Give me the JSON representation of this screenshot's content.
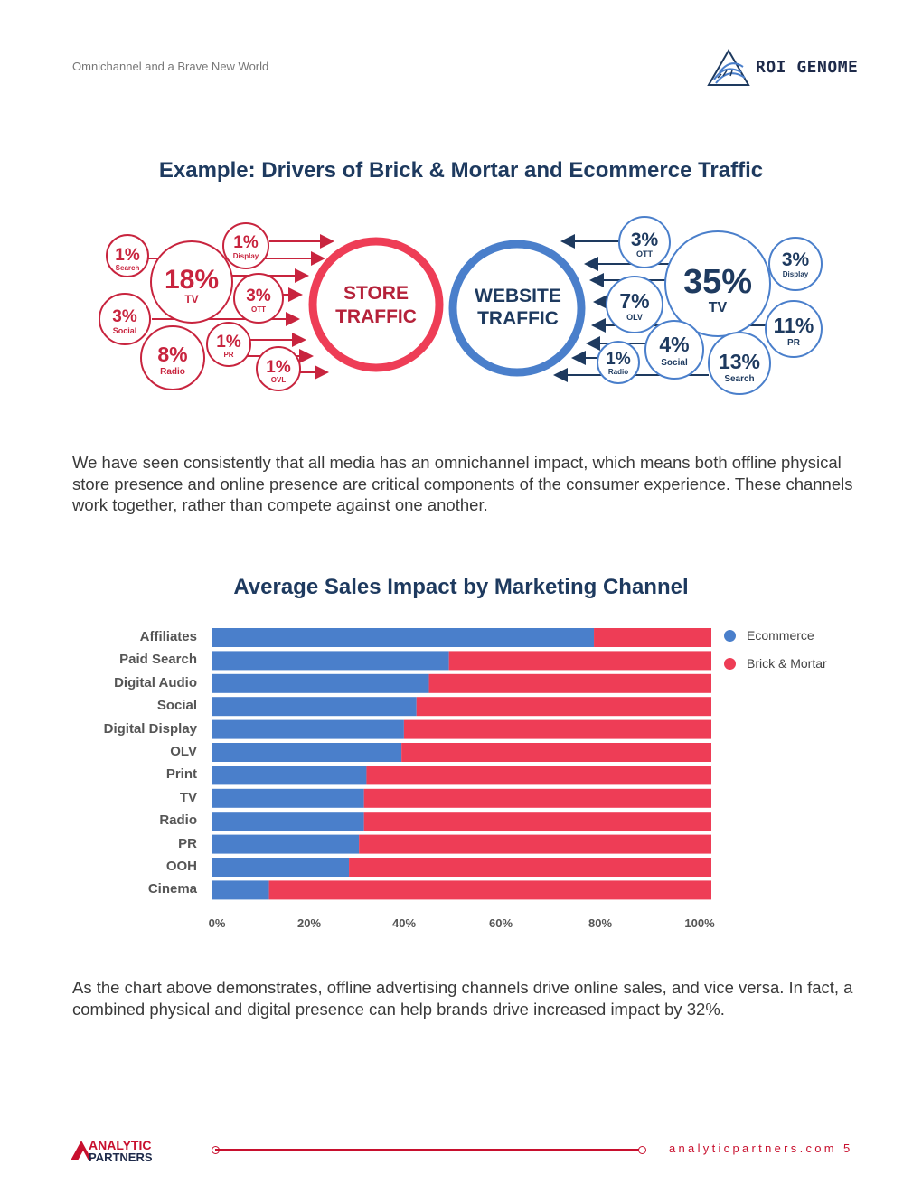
{
  "header": {
    "doc_title": "Omnichannel and a Brave New World",
    "logo_text": "ROI GENOME"
  },
  "section1": {
    "title": "Example: Drivers of Brick & Mortar and Ecommerce Traffic"
  },
  "store_diagram": {
    "center_label_line1": "STORE",
    "center_label_line2": "TRAFFIC",
    "bubbles": [
      {
        "pct": "1%",
        "label": "Search"
      },
      {
        "pct": "18%",
        "label": "TV"
      },
      {
        "pct": "1%",
        "label": "Display"
      },
      {
        "pct": "3%",
        "label": "OTT"
      },
      {
        "pct": "3%",
        "label": "Social"
      },
      {
        "pct": "1%",
        "label": "PR"
      },
      {
        "pct": "8%",
        "label": "Radio"
      },
      {
        "pct": "1%",
        "label": "OVL"
      }
    ]
  },
  "web_diagram": {
    "center_label_line1": "WEBSITE",
    "center_label_line2": "TRAFFIC",
    "bubbles": [
      {
        "pct": "3%",
        "label": "OTT"
      },
      {
        "pct": "35%",
        "label": "TV"
      },
      {
        "pct": "3%",
        "label": "Display"
      },
      {
        "pct": "7%",
        "label": "OLV"
      },
      {
        "pct": "11%",
        "label": "PR"
      },
      {
        "pct": "4%",
        "label": "Social"
      },
      {
        "pct": "1%",
        "label": "Radio"
      },
      {
        "pct": "13%",
        "label": "Search"
      }
    ]
  },
  "paragraph1": "We have seen consistently that all media has an omnichannel impact, which means both offline physical store presence and online presence are critical components of the consumer experience. These channels work together, rather than compete against one another.",
  "chart_data": {
    "type": "bar",
    "orientation": "horizontal",
    "stacked": true,
    "title": "Average Sales Impact by Marketing Channel",
    "categories": [
      "Affiliates",
      "Paid Search",
      "Digital Audio",
      "Social",
      "Digital Display",
      "OLV",
      "Print",
      "TV",
      "Radio",
      "PR",
      "OOH",
      "Cinema"
    ],
    "series": [
      {
        "name": "Ecommerce",
        "color": "#4a7fcb",
        "values": [
          76.5,
          47.5,
          43.5,
          41,
          38.5,
          38,
          31,
          30.5,
          30.5,
          29.5,
          27.5,
          11.5
        ]
      },
      {
        "name": "Brick & Mortar",
        "color": "#ee3d56",
        "values": [
          23.5,
          52.5,
          56.5,
          59,
          61.5,
          62,
          69,
          69.5,
          69.5,
          70.5,
          72.5,
          88.5
        ]
      }
    ],
    "xticks": [
      "0%",
      "20%",
      "40%",
      "60%",
      "80%",
      "100%"
    ],
    "xlim": [
      0,
      100
    ],
    "legend_position": "right"
  },
  "paragraph2": "As the chart above demonstrates, offline advertising channels drive online sales, and vice versa. In fact, a combined physical and digital presence can help brands drive increased impact by 32%.",
  "footer": {
    "logo_line1": "ANALYTIC",
    "logo_line2": "PARTNERS",
    "url": "analyticpartners.com",
    "page_number": "5"
  },
  "colors": {
    "red": "#c8102e",
    "bubble_red": "#c8243e",
    "blue": "#4a7fcb",
    "navy": "#1e3a5f"
  }
}
